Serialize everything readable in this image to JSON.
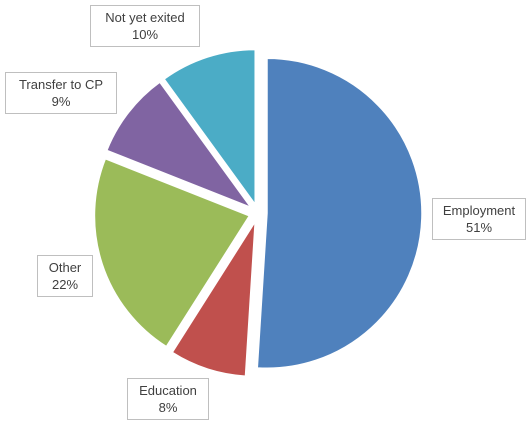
{
  "chart_data": {
    "type": "pie",
    "exploded": true,
    "title": "",
    "legend": "none",
    "slices": [
      {
        "name": "Employment",
        "value": 51,
        "label": "51%",
        "color": "#4F81BD"
      },
      {
        "name": "Education",
        "value": 8,
        "label": "8%",
        "color": "#C0504D"
      },
      {
        "name": "Other",
        "value": 22,
        "label": "22%",
        "color": "#9BBB59"
      },
      {
        "name": "Transfer to CP",
        "value": 9,
        "label": "9%",
        "color": "#8064A2"
      },
      {
        "name": "Not yet exited",
        "value": 10,
        "label": "10%",
        "color": "#4BACC6"
      }
    ]
  }
}
